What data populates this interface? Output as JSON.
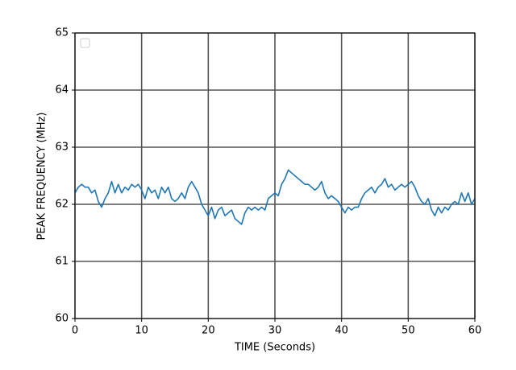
{
  "chart_data": {
    "type": "line",
    "xlabel": "TIME (Seconds)",
    "ylabel": "PEAK FREQUENCY (MHz)",
    "x": [
      0,
      0.5,
      1,
      1.5,
      2,
      2.5,
      3,
      3.5,
      4,
      4.5,
      5,
      5.5,
      6,
      6.5,
      7,
      7.5,
      8,
      8.5,
      9,
      9.5,
      10,
      10.5,
      11,
      11.5,
      12,
      12.5,
      13,
      13.5,
      14,
      14.5,
      15,
      15.5,
      16,
      16.5,
      17,
      17.5,
      18,
      18.5,
      19,
      19.5,
      20,
      20.5,
      21,
      21.5,
      22,
      22.5,
      23,
      23.5,
      24,
      24.5,
      25,
      25.5,
      26,
      26.5,
      27,
      27.5,
      28,
      28.5,
      29,
      29.5,
      30,
      30.5,
      31,
      31.5,
      32,
      32.5,
      33,
      33.5,
      34,
      34.5,
      35,
      35.5,
      36,
      36.5,
      37,
      37.5,
      38,
      38.5,
      39,
      39.5,
      40,
      40.5,
      41,
      41.5,
      42,
      42.5,
      43,
      43.5,
      44,
      44.5,
      45,
      45.5,
      46,
      46.5,
      47,
      47.5,
      48,
      48.5,
      49,
      49.5,
      50,
      50.5,
      51,
      51.5,
      52,
      52.5,
      53,
      53.5,
      54,
      54.5,
      55,
      55.5,
      56,
      56.5,
      57,
      57.5,
      58,
      58.5,
      59,
      59.5,
      60
    ],
    "series": [
      {
        "color": "#1f77b4",
        "values": [
          62.2,
          62.3,
          62.35,
          62.3,
          62.3,
          62.2,
          62.25,
          62.05,
          61.95,
          62.1,
          62.2,
          62.4,
          62.2,
          62.35,
          62.2,
          62.3,
          62.25,
          62.35,
          62.3,
          62.35,
          62.25,
          62.1,
          62.3,
          62.2,
          62.25,
          62.1,
          62.3,
          62.2,
          62.3,
          62.1,
          62.05,
          62.1,
          62.2,
          62.1,
          62.3,
          62.4,
          62.3,
          62.2,
          62.0,
          61.9,
          61.8,
          61.95,
          61.75,
          61.9,
          61.95,
          61.8,
          61.85,
          61.9,
          61.75,
          61.7,
          61.65,
          61.85,
          61.95,
          61.9,
          61.95,
          61.9,
          61.95,
          61.9,
          62.1,
          62.15,
          62.2,
          62.15,
          62.35,
          62.45,
          62.6,
          62.55,
          62.5,
          62.45,
          62.4,
          62.35,
          62.35,
          62.3,
          62.25,
          62.3,
          62.4,
          62.2,
          62.1,
          62.15,
          62.1,
          62.05,
          61.95,
          61.85,
          61.95,
          61.9,
          61.95,
          61.95,
          62.1,
          62.2,
          62.25,
          62.3,
          62.2,
          62.3,
          62.35,
          62.45,
          62.3,
          62.35,
          62.25,
          62.3,
          62.35,
          62.3,
          62.35,
          62.4,
          62.3,
          62.15,
          62.05,
          62.0,
          62.1,
          61.9,
          61.8,
          61.95,
          61.85,
          61.95,
          61.9,
          62.0,
          62.05,
          62.0,
          62.2,
          62.05,
          62.2,
          62.0,
          62.1
        ]
      }
    ],
    "xlim": [
      0,
      60
    ],
    "xticks": [
      0,
      10,
      20,
      30,
      40,
      50,
      60
    ],
    "ylim": [
      60,
      65
    ],
    "yticks": [
      60,
      61,
      62,
      63,
      64,
      65
    ],
    "grid": true,
    "legend": "upper left"
  }
}
